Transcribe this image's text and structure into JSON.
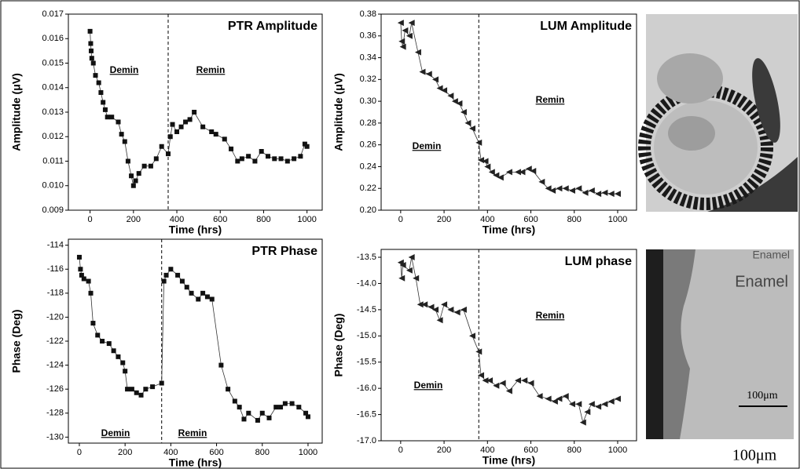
{
  "chart_data": [
    {
      "type": "scatter-line",
      "title": "PTR Amplitude",
      "x_label": "Time (hrs)",
      "y_label": "Amplitude (μV)",
      "marker": "square",
      "color": "#111111",
      "annotations": [
        "Demin",
        "Remin"
      ],
      "vline": 360,
      "xlim": [
        -100,
        1070
      ],
      "xticks": [
        0,
        200,
        400,
        600,
        800,
        1000
      ],
      "ylim": [
        0.009,
        0.017
      ],
      "yticks": [
        {
          "value": 0.009,
          "label": "0.009"
        },
        {
          "value": 0.01,
          "label": "0.010"
        },
        {
          "value": 0.011,
          "label": "0.011"
        },
        {
          "value": 0.012,
          "label": "0.012"
        },
        {
          "value": 0.013,
          "label": "0.013"
        },
        {
          "value": 0.014,
          "label": "0.014"
        },
        {
          "value": 0.015,
          "label": "0.015"
        },
        {
          "value": 0.016,
          "label": "0.016"
        },
        {
          "value": 0.017,
          "label": "0.017"
        }
      ],
      "x": [
        0,
        3,
        5,
        8,
        15,
        25,
        40,
        50,
        60,
        70,
        80,
        100,
        130,
        145,
        160,
        175,
        190,
        200,
        210,
        225,
        250,
        280,
        305,
        330,
        360,
        370,
        380,
        400,
        420,
        440,
        460,
        480,
        520,
        560,
        580,
        620,
        650,
        680,
        700,
        730,
        760,
        790,
        820,
        850,
        880,
        910,
        940,
        970,
        990,
        1000
      ],
      "values": [
        0.0163,
        0.0158,
        0.0155,
        0.0152,
        0.015,
        0.0145,
        0.0142,
        0.0138,
        0.0134,
        0.0131,
        0.0128,
        0.0128,
        0.0126,
        0.0121,
        0.0118,
        0.011,
        0.0104,
        0.01,
        0.0102,
        0.0105,
        0.0108,
        0.0108,
        0.0111,
        0.0116,
        0.0113,
        0.012,
        0.0125,
        0.0122,
        0.0124,
        0.0126,
        0.0127,
        0.013,
        0.0124,
        0.0122,
        0.0121,
        0.0119,
        0.0115,
        0.011,
        0.0111,
        0.0112,
        0.011,
        0.0114,
        0.0112,
        0.0111,
        0.0111,
        0.011,
        0.0111,
        0.0112,
        0.0117,
        0.0116
      ]
    },
    {
      "type": "scatter-line",
      "title": "LUM Amplitude",
      "x_label": "Time (hrs)",
      "y_label": "Amplitude (μV)",
      "marker": "triangle-left",
      "color": "#222222",
      "annotations": [
        "Demin",
        "Remin"
      ],
      "vline": 360,
      "xlim": [
        -90,
        1087
      ],
      "xticks": [
        0,
        200,
        400,
        600,
        800,
        1000
      ],
      "ylim": [
        0.2,
        0.38
      ],
      "yticks": [
        {
          "value": 0.2,
          "label": "0.20"
        },
        {
          "value": 0.22,
          "label": "0.22"
        },
        {
          "value": 0.24,
          "label": "0.24"
        },
        {
          "value": 0.26,
          "label": "0.26"
        },
        {
          "value": 0.28,
          "label": "0.28"
        },
        {
          "value": 0.3,
          "label": "0.30"
        },
        {
          "value": 0.32,
          "label": "0.32"
        },
        {
          "value": 0.34,
          "label": "0.34"
        },
        {
          "value": 0.36,
          "label": "0.36"
        },
        {
          "value": 0.38,
          "label": "0.38"
        }
      ],
      "x": [
        0,
        5,
        10,
        20,
        40,
        50,
        80,
        100,
        130,
        160,
        180,
        200,
        230,
        250,
        270,
        290,
        310,
        330,
        360,
        370,
        390,
        400,
        420,
        440,
        460,
        500,
        540,
        560,
        590,
        610,
        650,
        680,
        700,
        730,
        760,
        790,
        820,
        850,
        880,
        910,
        940,
        970,
        1000
      ],
      "values": [
        0.372,
        0.355,
        0.35,
        0.365,
        0.36,
        0.372,
        0.345,
        0.327,
        0.325,
        0.32,
        0.312,
        0.31,
        0.305,
        0.3,
        0.298,
        0.29,
        0.28,
        0.275,
        0.262,
        0.246,
        0.245,
        0.24,
        0.235,
        0.232,
        0.23,
        0.235,
        0.235,
        0.235,
        0.238,
        0.236,
        0.226,
        0.22,
        0.218,
        0.22,
        0.22,
        0.218,
        0.22,
        0.216,
        0.218,
        0.215,
        0.216,
        0.215,
        0.215
      ]
    },
    {
      "type": "scatter-line",
      "title": "PTR Phase",
      "x_label": "Time (hrs)",
      "y_label": "Phase (Deg)",
      "marker": "square",
      "color": "#111111",
      "annotations": [
        "Demin",
        "Remin"
      ],
      "vline": 360,
      "xlim": [
        -48,
        1062
      ],
      "xticks": [
        0,
        200,
        400,
        600,
        800,
        1000
      ],
      "ylim": [
        -130.5,
        -113.5
      ],
      "yticks": [
        -130,
        -128,
        -126,
        -124,
        -122,
        -120,
        -118,
        -116,
        -114
      ],
      "x": [
        0,
        5,
        10,
        20,
        40,
        50,
        60,
        80,
        100,
        130,
        150,
        170,
        190,
        200,
        210,
        230,
        250,
        270,
        290,
        320,
        360,
        370,
        380,
        400,
        430,
        450,
        470,
        490,
        520,
        540,
        560,
        580,
        620,
        650,
        680,
        700,
        720,
        740,
        780,
        800,
        830,
        860,
        880,
        900,
        930,
        960,
        990,
        1000
      ],
      "values": [
        -115,
        -116,
        -116.5,
        -116.8,
        -117,
        -118,
        -120.5,
        -121.5,
        -122,
        -122.2,
        -122.8,
        -123.3,
        -123.8,
        -124.5,
        -126,
        -126,
        -126.3,
        -126.5,
        -126,
        -125.8,
        -125.5,
        -117,
        -116.5,
        -116,
        -116.5,
        -117,
        -117.5,
        -118,
        -118.5,
        -118,
        -118.3,
        -118.5,
        -124,
        -126,
        -127,
        -127.5,
        -128.5,
        -128,
        -128.6,
        -128,
        -128.4,
        -127.5,
        -127.5,
        -127.2,
        -127.2,
        -127.5,
        -128,
        -128.3
      ]
    },
    {
      "type": "scatter-line",
      "title": "LUM phase",
      "x_label": "Time (hrs)",
      "y_label": "Phase (Deg)",
      "marker": "triangle-left",
      "color": "#222222",
      "annotations": [
        "Demin",
        "Remin"
      ],
      "vline": 360,
      "xlim": [
        -90,
        1087
      ],
      "xticks": [
        0,
        200,
        400,
        600,
        800,
        1000
      ],
      "ylim": [
        -17.0,
        -13.35
      ],
      "yticks": [
        {
          "value": -17,
          "label": "-17.0"
        },
        {
          "value": -16.5,
          "label": "-16.5"
        },
        {
          "value": -16,
          "label": "-16.0"
        },
        {
          "value": -15.5,
          "label": "-15.5"
        },
        {
          "value": -15,
          "label": "-15.0"
        },
        {
          "value": -14.5,
          "label": "-14.5"
        },
        {
          "value": -14,
          "label": "-14.0"
        },
        {
          "value": -13.5,
          "label": "-13.5"
        }
      ],
      "x": [
        0,
        5,
        10,
        40,
        50,
        70,
        90,
        110,
        140,
        160,
        180,
        200,
        230,
        260,
        290,
        330,
        360,
        370,
        390,
        410,
        440,
        470,
        500,
        540,
        570,
        600,
        640,
        680,
        710,
        730,
        760,
        790,
        820,
        840,
        860,
        880,
        910,
        940,
        970,
        1000
      ],
      "values": [
        -13.6,
        -13.9,
        -13.65,
        -13.75,
        -13.5,
        -13.9,
        -14.4,
        -14.4,
        -14.45,
        -14.5,
        -14.7,
        -14.4,
        -14.5,
        -14.55,
        -14.5,
        -15.0,
        -15.3,
        -15.75,
        -15.85,
        -15.85,
        -15.95,
        -15.9,
        -16.05,
        -15.85,
        -15.85,
        -15.9,
        -16.15,
        -16.2,
        -16.25,
        -16.2,
        -16.15,
        -16.3,
        -16.3,
        -16.65,
        -16.45,
        -16.3,
        -16.35,
        -16.3,
        -16.25,
        -16.2
      ]
    }
  ],
  "micrograph": {
    "labels": [
      "Enamel",
      "Enamel",
      "100μm",
      "100μm"
    ]
  }
}
